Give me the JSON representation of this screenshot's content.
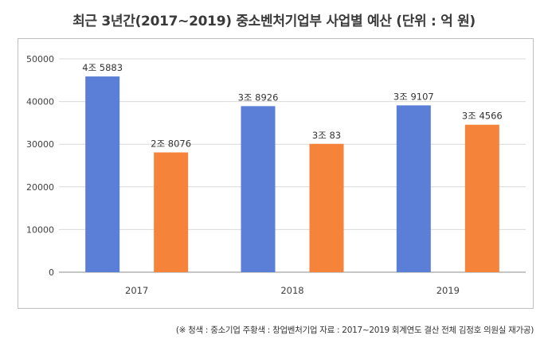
{
  "chart_data": {
    "type": "bar",
    "title": "최근 3년간(2017~2019) 중소벤처기업부 사업별 예산 (단위 : 억 원)",
    "categories": [
      "2017",
      "2018",
      "2019"
    ],
    "series": [
      {
        "color": "#5b7fd6",
        "values": [
          45883,
          38926,
          39107
        ],
        "labels": [
          "4조 5883",
          "3조 8926",
          "3조 9107"
        ]
      },
      {
        "color": "#f5843a",
        "values": [
          28076,
          30083,
          34566
        ],
        "labels": [
          "2조 8076",
          "3조 83",
          "3조 4566"
        ]
      }
    ],
    "ylim": [
      0,
      50000
    ],
    "yticks": [
      "0",
      "10000",
      "20000",
      "30000",
      "40000",
      "50000"
    ],
    "grid": true
  },
  "note": "(※ 청색 : 중소기업 주황색 : 창업벤처기업 자료 : 2017~2019 회계연도 결산 전체 김정호 의원실 재가공)"
}
